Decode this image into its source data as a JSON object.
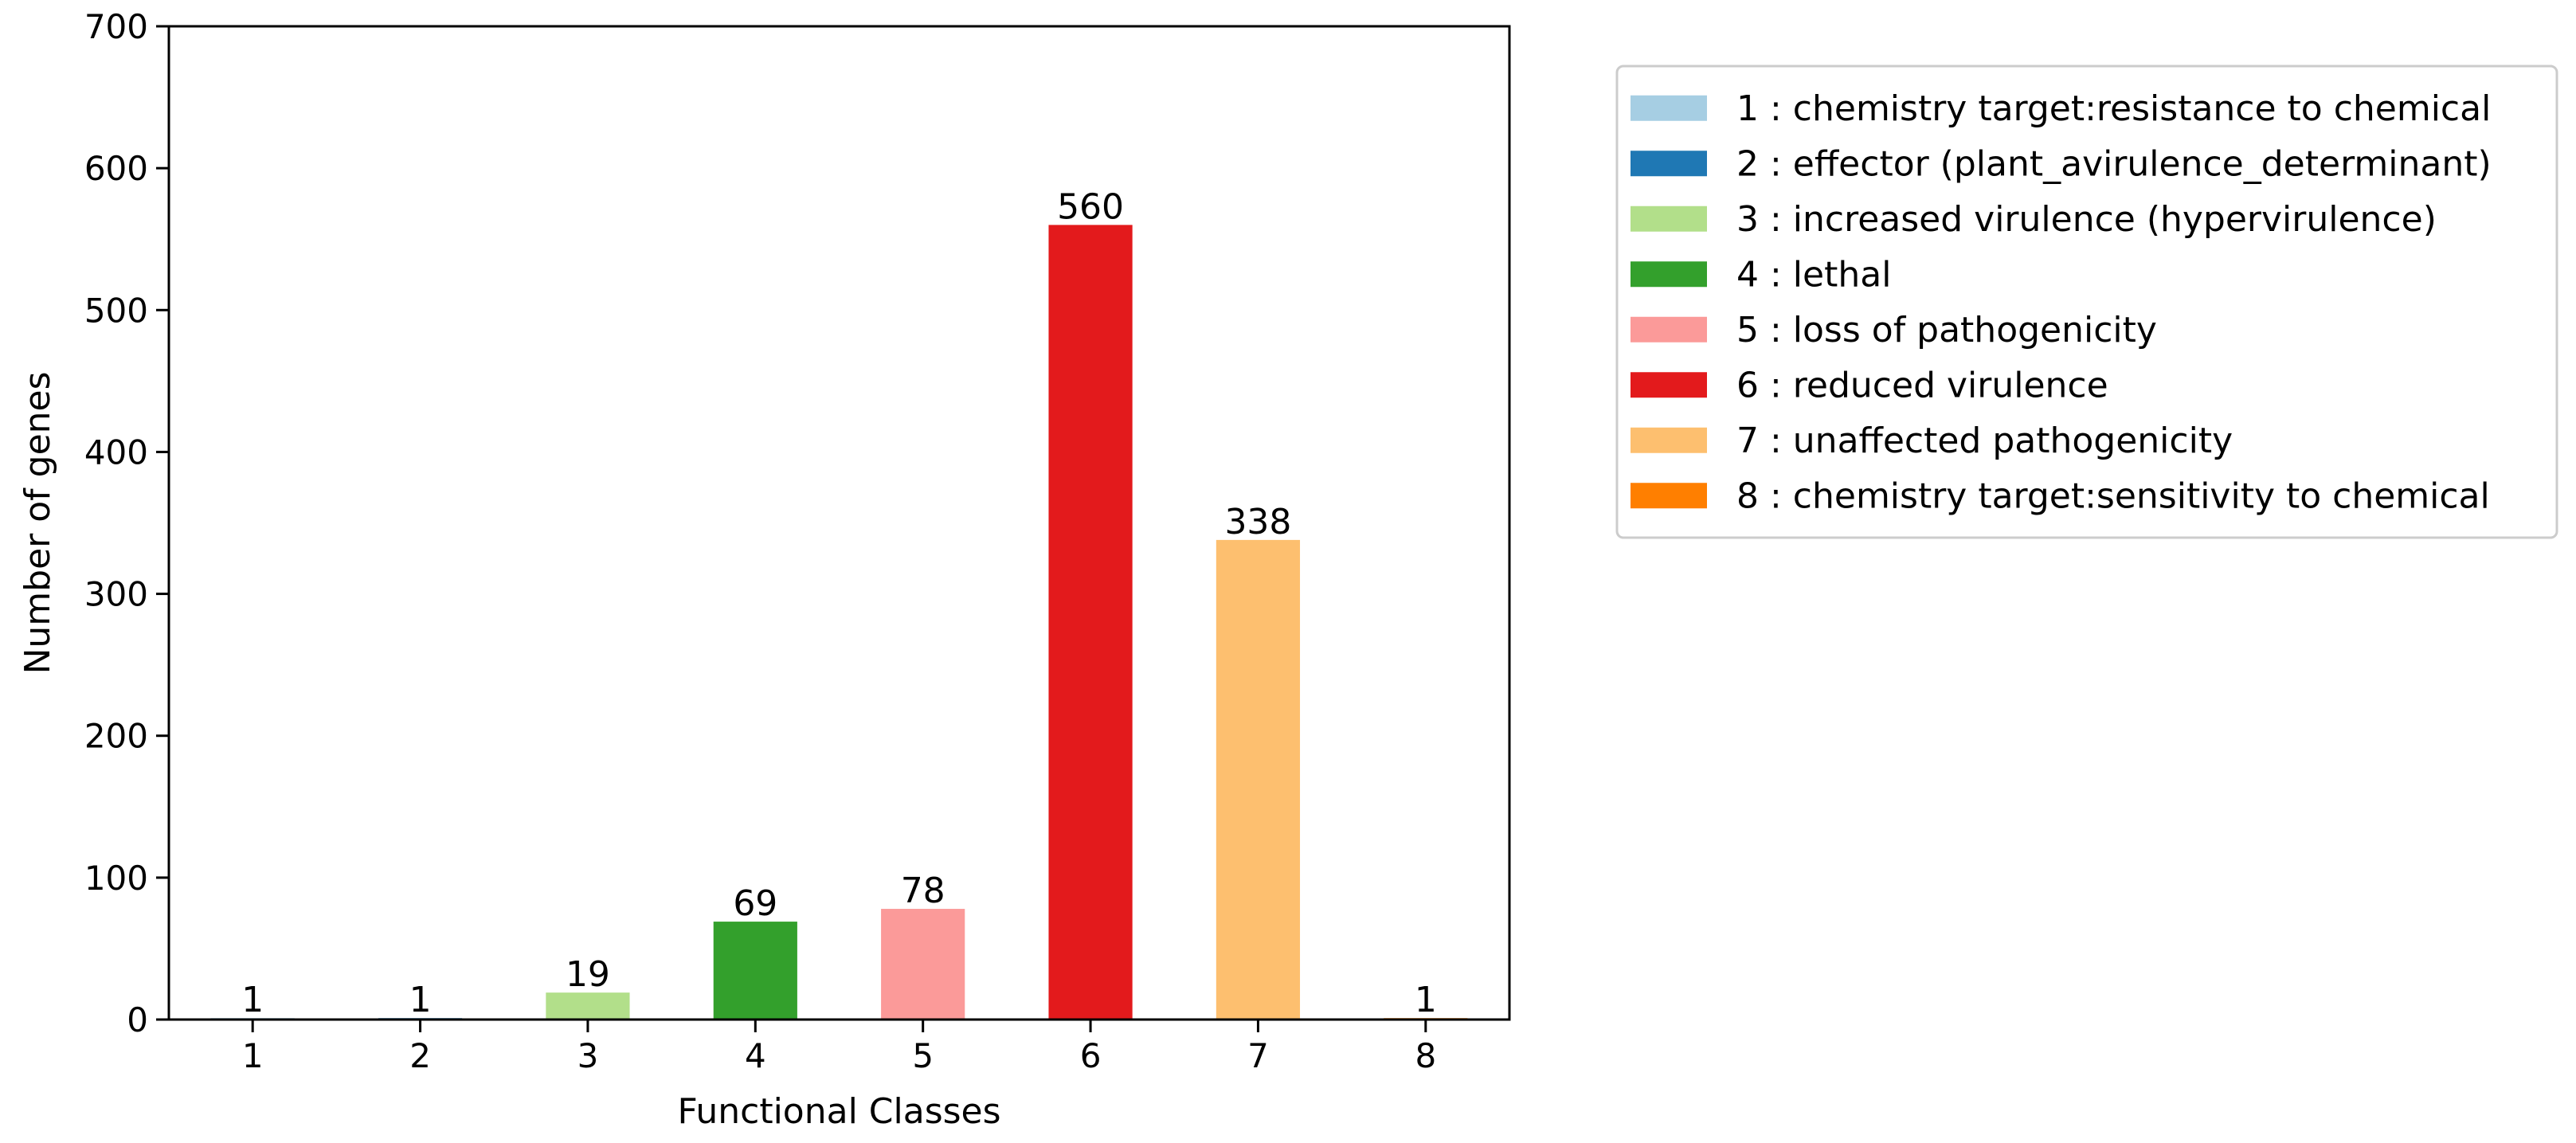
{
  "chart_data": {
    "type": "bar",
    "xlabel": "Functional Classes",
    "ylabel": "Number of genes",
    "categories": [
      "1",
      "2",
      "3",
      "4",
      "5",
      "6",
      "7",
      "8"
    ],
    "values": [
      1,
      1,
      19,
      69,
      78,
      560,
      338,
      1
    ],
    "bar_labels": [
      "1",
      "1",
      "19",
      "69",
      "78",
      "560",
      "338",
      "1"
    ],
    "colors": [
      "#a6cee3",
      "#1f78b4",
      "#b2df8a",
      "#33a02c",
      "#fb9a99",
      "#e31a1c",
      "#fdbf6f",
      "#ff7f00"
    ],
    "ylim": [
      0,
      700
    ],
    "yticks": [
      0,
      100,
      200,
      300,
      400,
      500,
      600,
      700
    ],
    "grid": false,
    "legend_position": "outside-right",
    "legend": [
      "1 : chemistry target:resistance to chemical",
      "2 : effector (plant_avirulence_determinant)",
      "3 : increased virulence (hypervirulence)",
      "4 : lethal",
      "5 : loss of pathogenicity",
      "6 : reduced virulence",
      "7 : unaffected pathogenicity",
      "8 : chemistry target:sensitivity to chemical"
    ]
  }
}
